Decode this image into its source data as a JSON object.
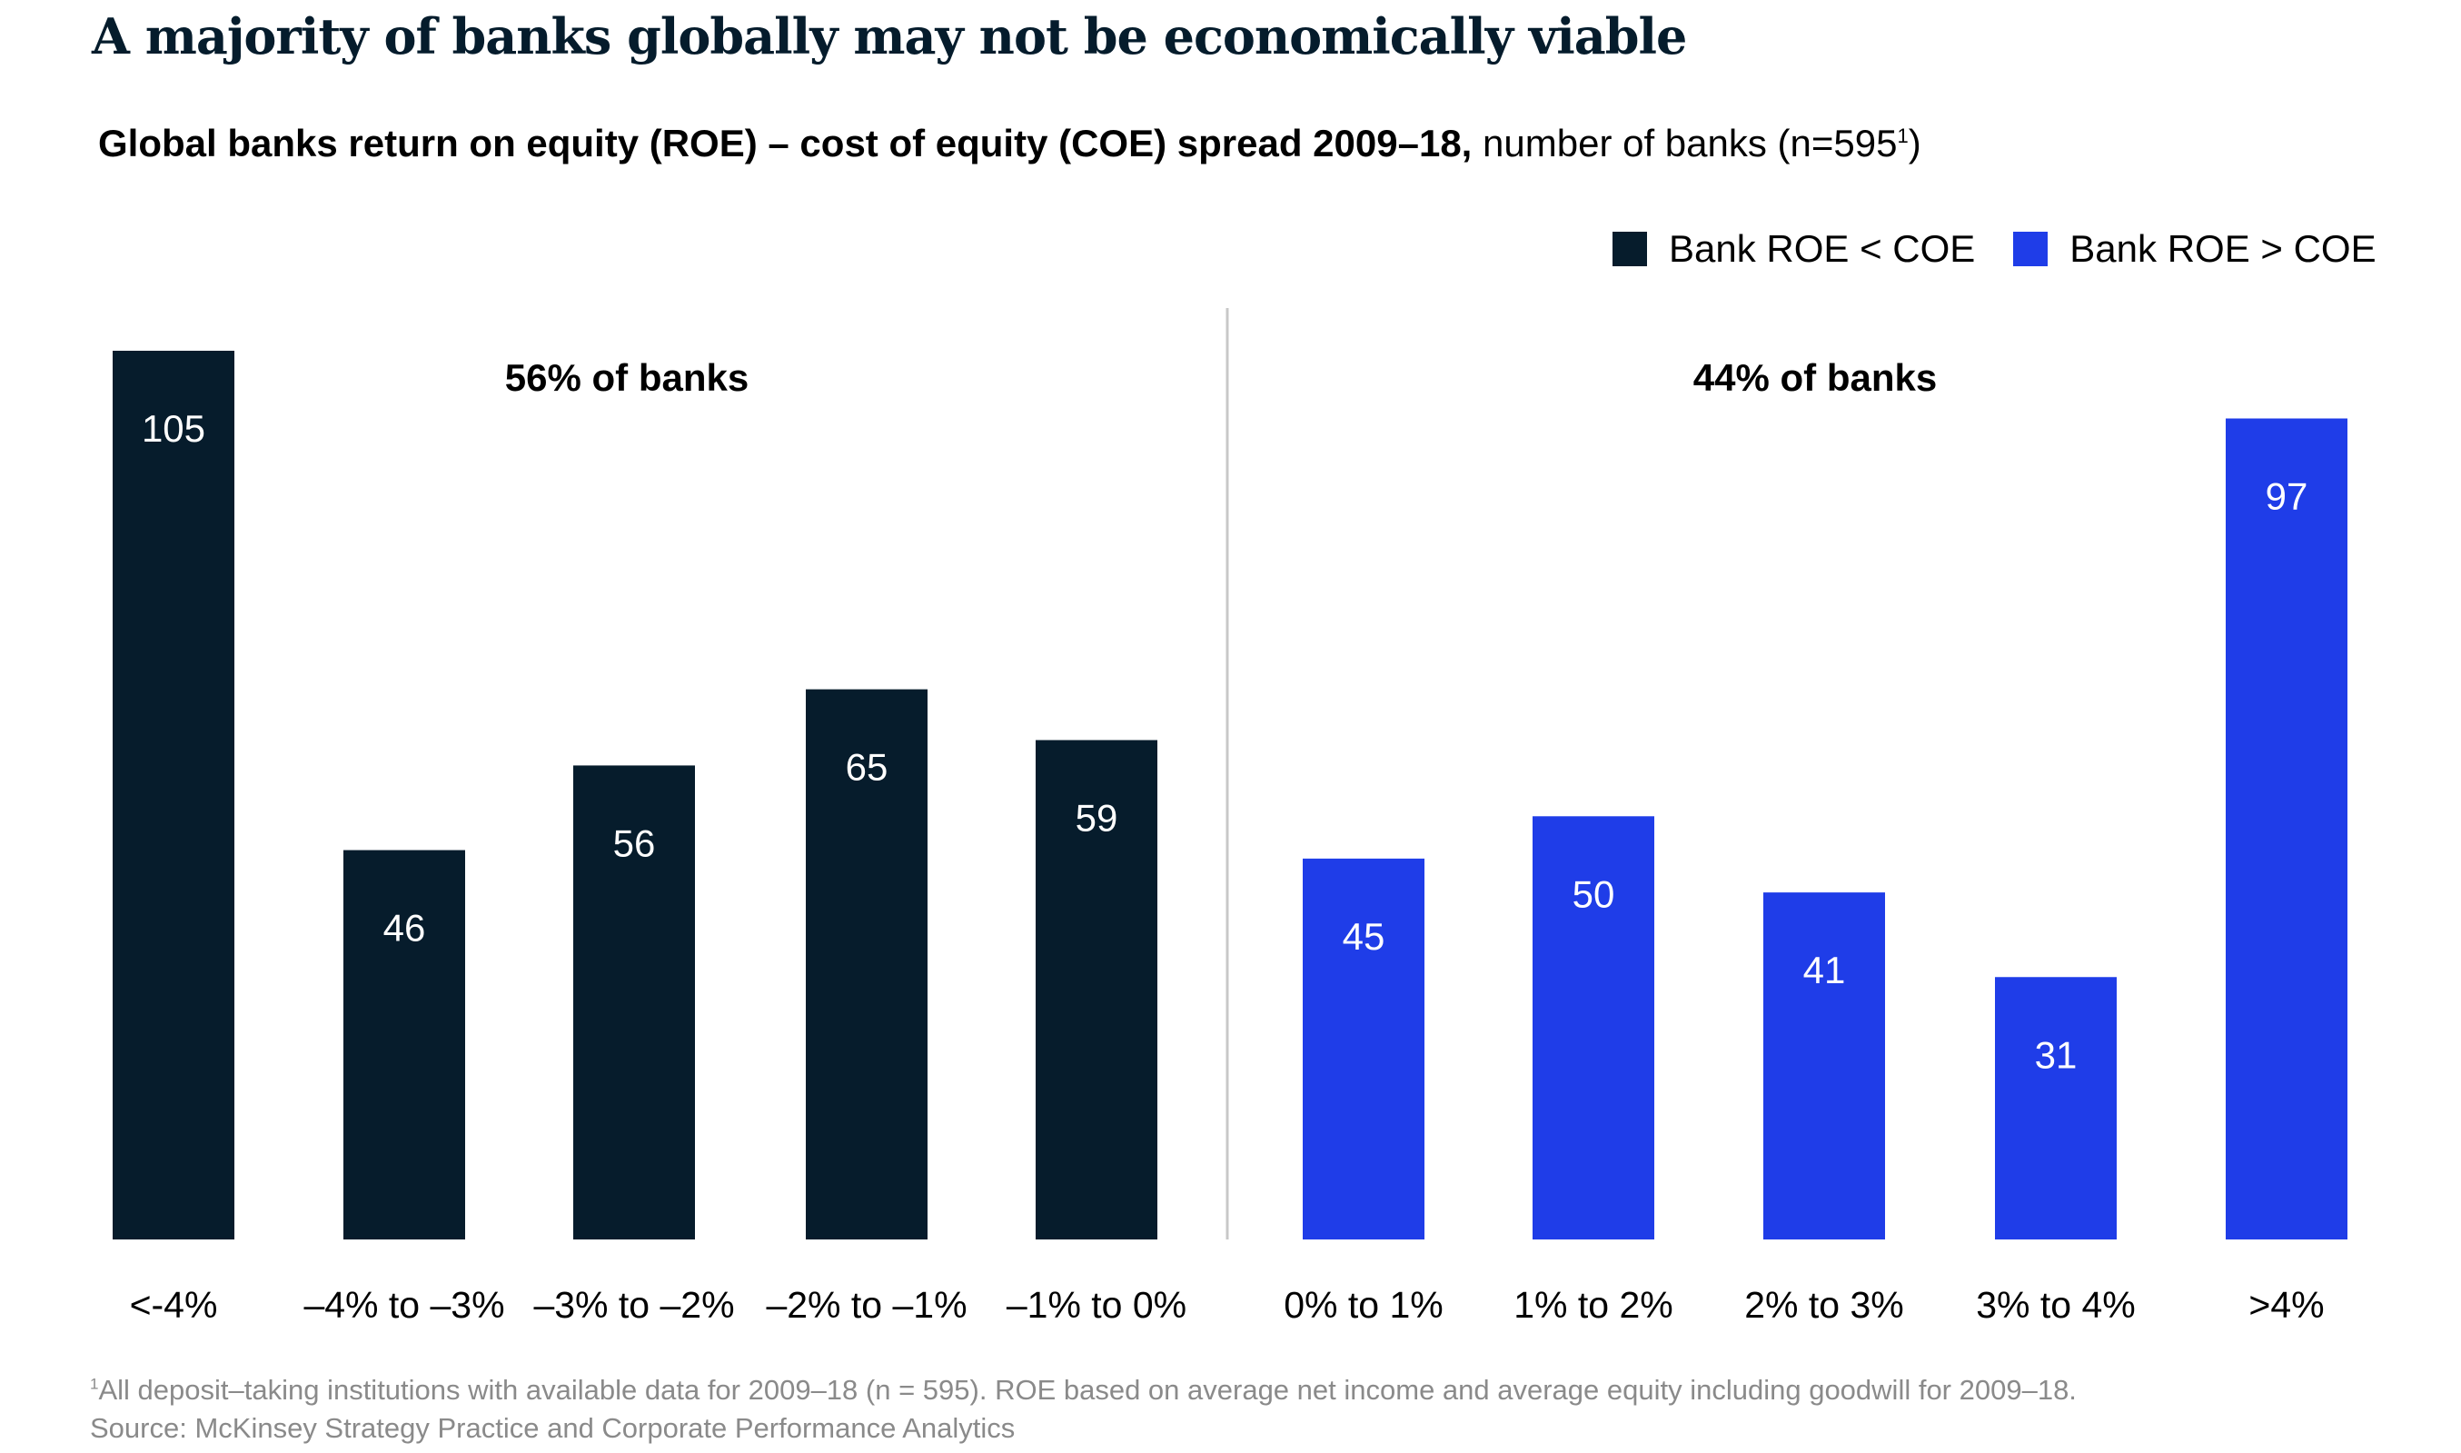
{
  "title": "A majority of banks globally may not be economically viable",
  "subtitle": {
    "bold": "Global banks return on equity (ROE) – cost of equity (COE) spread 2009–18,",
    "normal": "number of banks (n=595",
    "sup": "1",
    "close": ")"
  },
  "legend": [
    {
      "label": "Bank ROE < COE",
      "color": "#061c2c"
    },
    {
      "label": "Bank ROE > COE",
      "color": "#1f3de8"
    }
  ],
  "chart_data": {
    "type": "bar",
    "title": "Global banks return on equity (ROE) – cost of equity (COE) spread 2009–18",
    "xlabel": "",
    "ylabel": "number of banks",
    "ylim": [
      0,
      105
    ],
    "grid": false,
    "legend_position": "top-right",
    "categories": [
      "<-4%",
      "–4% to –3%",
      "–3% to –2%",
      "–2% to –1%",
      "–1% to 0%",
      "0% to 1%",
      "1% to 2%",
      "2% to 3%",
      "3% to 4%",
      ">4%"
    ],
    "values": [
      105,
      46,
      56,
      65,
      59,
      45,
      50,
      41,
      31,
      97
    ],
    "series_index": [
      0,
      0,
      0,
      0,
      0,
      1,
      1,
      1,
      1,
      1
    ],
    "annotations": [
      "56% of banks",
      "44% of banks"
    ]
  },
  "footnotes": {
    "note_sup": "1",
    "note": "All deposit–taking institutions with available data for 2009–18 (n = 595).  ROE based on average net income and average equity including goodwill for 2009–18.",
    "source": "Source: McKinsey Strategy Practice and Corporate Performance Analytics"
  }
}
